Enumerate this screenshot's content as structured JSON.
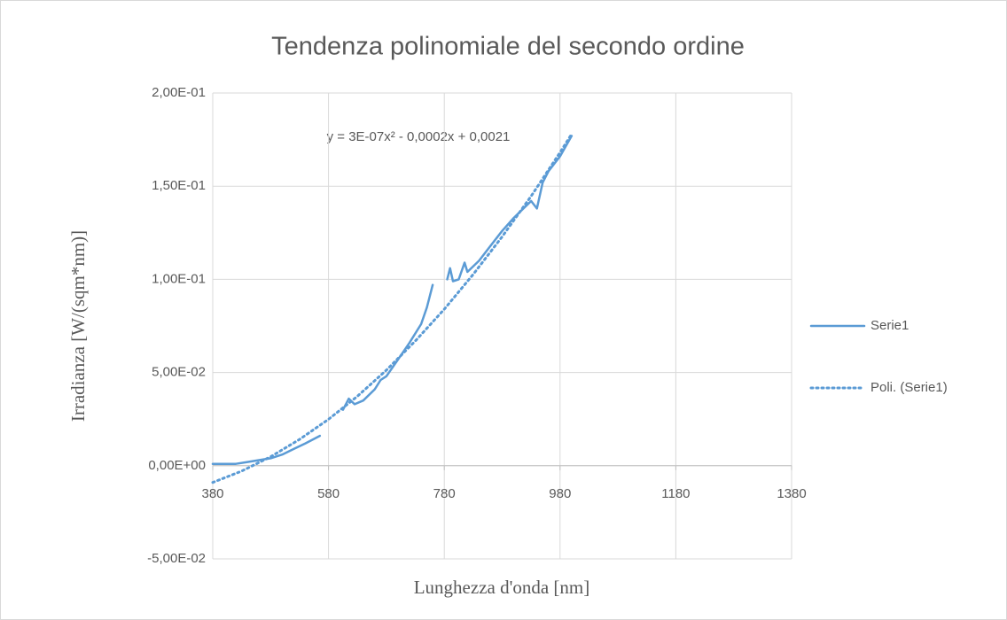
{
  "chart_data": {
    "type": "line",
    "title": "Tendenza polinomiale del secondo ordine",
    "x_label": "Lunghezza d'onda [nm]",
    "y_label": "Irradianza [W/(sqm*nm)]",
    "annotation": "y = 3E-07x² - 0,0002x + 0,0021",
    "xlim": [
      380,
      1380
    ],
    "xticks": [
      380,
      580,
      780,
      980,
      1180,
      1380
    ],
    "ylim": [
      -0.05,
      0.2
    ],
    "yticks": [
      {
        "value": -0.05,
        "label": "-5,00E-02"
      },
      {
        "value": 0,
        "label": "0,00E+00"
      },
      {
        "value": 0.05,
        "label": "5,00E-02"
      },
      {
        "value": 0.1,
        "label": "1,00E-01"
      },
      {
        "value": 0.15,
        "label": "1,50E-01"
      },
      {
        "value": 0.2,
        "label": "2,00E-01"
      }
    ],
    "grid": true,
    "legend": "right",
    "series": [
      {
        "name": "Serie1",
        "color": "#5b9bd5",
        "style": "solid",
        "x": [
          380,
          400,
          420,
          440,
          460,
          480,
          500,
          520,
          540,
          565,
          585,
          605,
          615,
          625,
          640,
          660,
          670,
          680,
          700,
          720,
          740,
          750,
          760,
          772,
          785,
          790,
          795,
          805,
          815,
          820,
          840,
          860,
          880,
          900,
          920,
          930,
          940,
          950,
          960,
          980,
          1000
        ],
        "values": [
          0.001,
          0.001,
          0.001,
          0.002,
          0.003,
          0.004,
          0.006,
          0.009,
          0.012,
          0.016,
          null,
          0.03,
          0.036,
          0.033,
          0.035,
          0.041,
          0.046,
          0.048,
          0.057,
          0.066,
          0.076,
          0.085,
          0.097,
          null,
          0.1,
          0.106,
          0.099,
          0.1,
          0.109,
          0.104,
          0.11,
          0.118,
          0.126,
          0.133,
          0.139,
          0.142,
          0.138,
          0.152,
          0.158,
          0.166,
          0.177
        ]
      },
      {
        "name": "Poli. (Serie1)",
        "color": "#5b9bd5",
        "style": "dotted",
        "x": [
          380,
          430,
          480,
          530,
          580,
          630,
          680,
          730,
          780,
          830,
          880,
          930,
          980,
          1000
        ],
        "values": [
          -0.009,
          -0.0029,
          0.0048,
          0.0141,
          0.0249,
          0.0373,
          0.0513,
          0.0669,
          0.084,
          0.1027,
          0.1229,
          0.1447,
          0.1681,
          0.178
        ]
      }
    ]
  }
}
